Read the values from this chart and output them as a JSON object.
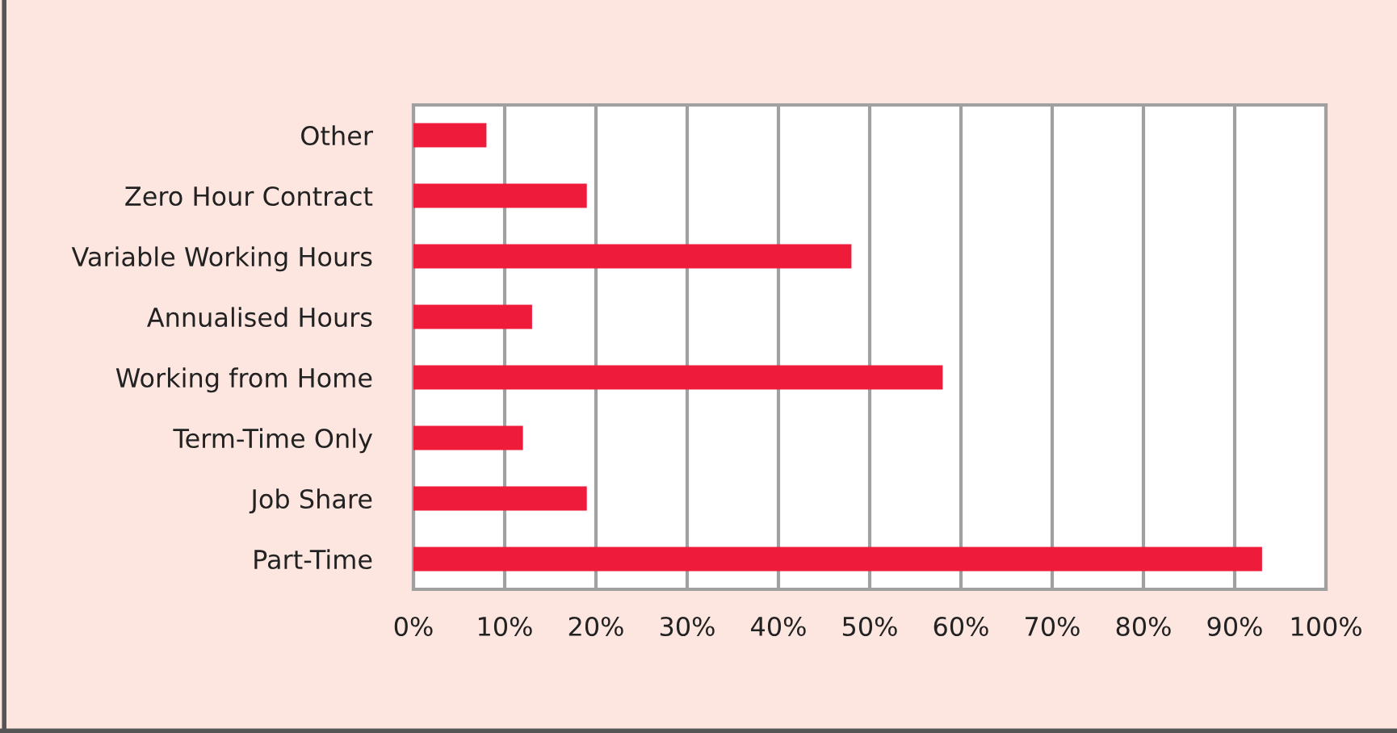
{
  "chart_data": {
    "type": "bar",
    "orientation": "horizontal",
    "categories": [
      "Other",
      "Zero Hour Contract",
      "Variable Working Hours",
      "Annualised Hours",
      "Working from Home",
      "Term-Time Only",
      "Job Share",
      "Part-Time"
    ],
    "values": [
      8,
      19,
      48,
      13,
      58,
      12,
      19,
      93
    ],
    "color": "#ee1c3a",
    "xlim": [
      0,
      100
    ],
    "xticks": [
      {
        "value": 0,
        "label": "0%"
      },
      {
        "value": 10,
        "label": "10%"
      },
      {
        "value": 20,
        "label": "20%"
      },
      {
        "value": 30,
        "label": "30%"
      },
      {
        "value": 40,
        "label": "40%"
      },
      {
        "value": 50,
        "label": "50%"
      },
      {
        "value": 60,
        "label": "60%"
      },
      {
        "value": 70,
        "label": "70%"
      },
      {
        "value": 80,
        "label": "80%"
      },
      {
        "value": 90,
        "label": "90%"
      },
      {
        "value": 100,
        "label": "100%"
      }
    ],
    "grid": "x",
    "legend": false
  }
}
